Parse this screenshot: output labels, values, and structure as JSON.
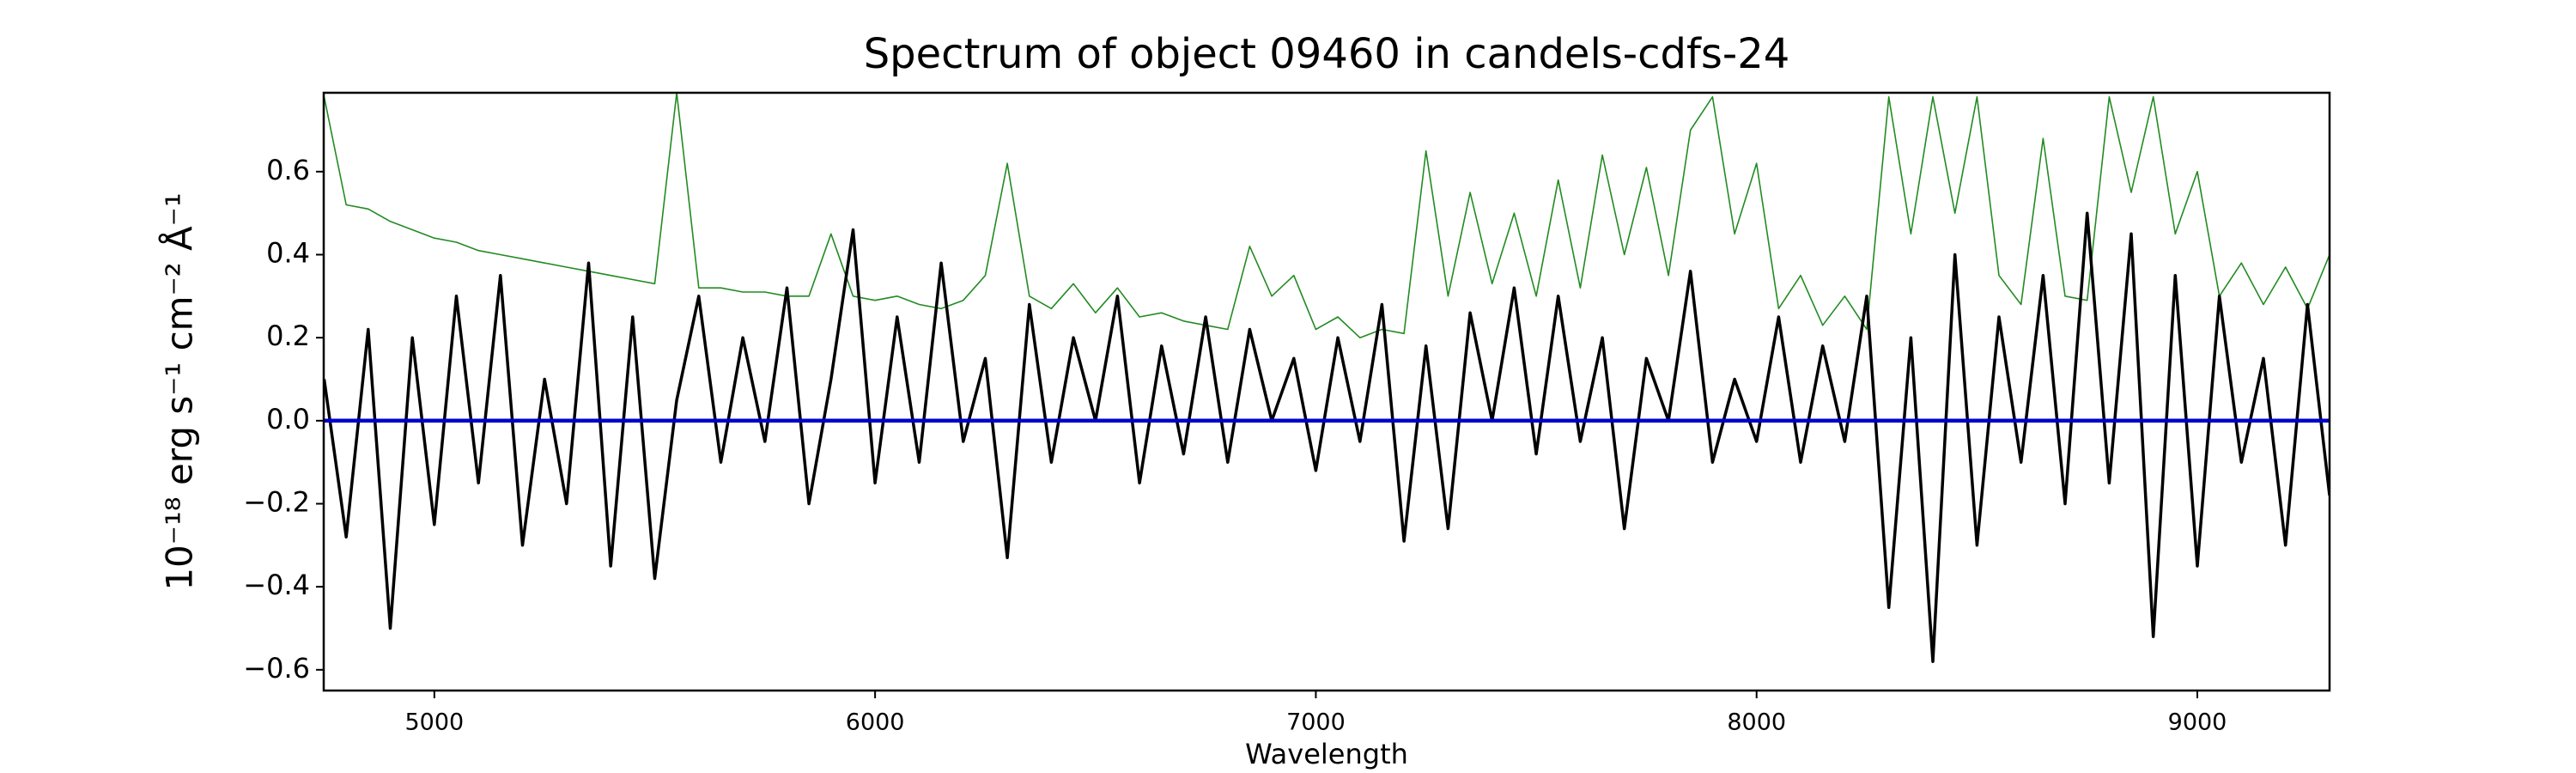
{
  "chart_data": {
    "type": "line",
    "title": "Spectrum of object 09460 in candels-cdfs-24",
    "x_label": "Wavelength",
    "y_label": "10⁻¹⁸ erg s⁻¹ cm⁻² Å⁻¹",
    "xlim": [
      4749,
      9300
    ],
    "ylim": [
      -0.65,
      0.79
    ],
    "xticks": [
      5000,
      6000,
      7000,
      8000,
      9000
    ],
    "yticks": [
      {
        "value": -0.6,
        "label": "−0.6"
      },
      {
        "value": -0.4,
        "label": "−0.4"
      },
      {
        "value": -0.2,
        "label": "−0.2"
      },
      {
        "value": 0,
        "label": "0.0"
      },
      0.2,
      0.4,
      0.6
    ],
    "x": [
      4750,
      4800,
      4850,
      4900,
      4950,
      5000,
      5050,
      5100,
      5150,
      5200,
      5250,
      5300,
      5350,
      5400,
      5450,
      5500,
      5550,
      5600,
      5650,
      5700,
      5750,
      5800,
      5850,
      5900,
      5950,
      6000,
      6050,
      6100,
      6150,
      6200,
      6250,
      6300,
      6350,
      6400,
      6450,
      6500,
      6550,
      6600,
      6650,
      6700,
      6750,
      6800,
      6850,
      6900,
      6950,
      7000,
      7050,
      7100,
      7150,
      7200,
      7250,
      7300,
      7350,
      7400,
      7450,
      7500,
      7550,
      7600,
      7650,
      7700,
      7750,
      7800,
      7850,
      7900,
      7950,
      8000,
      8050,
      8100,
      8150,
      8200,
      8250,
      8300,
      8350,
      8400,
      8450,
      8500,
      8550,
      8600,
      8650,
      8700,
      8750,
      8800,
      8850,
      8900,
      8950,
      9000,
      9050,
      9100,
      9150,
      9200,
      9250,
      9300
    ],
    "series": [
      {
        "color": "#228b22",
        "width": 1.6,
        "values": [
          0.78,
          0.52,
          0.51,
          0.48,
          0.46,
          0.44,
          0.43,
          0.41,
          0.4,
          0.39,
          0.38,
          0.37,
          0.36,
          0.35,
          0.34,
          0.33,
          0.79,
          0.32,
          0.32,
          0.31,
          0.31,
          0.3,
          0.3,
          0.45,
          0.3,
          0.29,
          0.3,
          0.28,
          0.27,
          0.29,
          0.35,
          0.62,
          0.3,
          0.27,
          0.33,
          0.26,
          0.32,
          0.25,
          0.26,
          0.24,
          0.23,
          0.22,
          0.42,
          0.3,
          0.35,
          0.22,
          0.25,
          0.2,
          0.22,
          0.21,
          0.65,
          0.3,
          0.55,
          0.33,
          0.5,
          0.3,
          0.58,
          0.32,
          0.64,
          0.4,
          0.61,
          0.35,
          0.7,
          0.78,
          0.45,
          0.62,
          0.27,
          0.35,
          0.23,
          0.3,
          0.22,
          0.78,
          0.45,
          0.78,
          0.5,
          0.78,
          0.35,
          0.28,
          0.68,
          0.3,
          0.29,
          0.78,
          0.55,
          0.78,
          0.45,
          0.6,
          0.3,
          0.38,
          0.28,
          0.37,
          0.27,
          0.4
        ]
      },
      {
        "color": "#000000",
        "width": 3.5,
        "values": [
          0.1,
          -0.28,
          0.22,
          -0.5,
          0.2,
          -0.25,
          0.3,
          -0.15,
          0.35,
          -0.3,
          0.1,
          -0.2,
          0.38,
          -0.35,
          0.25,
          -0.38,
          0.05,
          0.3,
          -0.1,
          0.2,
          -0.05,
          0.32,
          -0.2,
          0.1,
          0.46,
          -0.15,
          0.25,
          -0.1,
          0.38,
          -0.05,
          0.15,
          -0.33,
          0.28,
          -0.1,
          0.2,
          0.0,
          0.3,
          -0.15,
          0.18,
          -0.08,
          0.25,
          -0.1,
          0.22,
          0.0,
          0.15,
          -0.12,
          0.2,
          -0.05,
          0.28,
          -0.29,
          0.18,
          -0.26,
          0.26,
          0.0,
          0.32,
          -0.08,
          0.3,
          -0.05,
          0.2,
          -0.26,
          0.15,
          0.0,
          0.36,
          -0.1,
          0.1,
          -0.05,
          0.25,
          -0.1,
          0.18,
          -0.05,
          0.3,
          -0.45,
          0.2,
          -0.58,
          0.4,
          -0.3,
          0.25,
          -0.1,
          0.35,
          -0.2,
          0.5,
          -0.15,
          0.45,
          -0.52,
          0.35,
          -0.35,
          0.3,
          -0.1,
          0.15,
          -0.3,
          0.28,
          -0.18
        ]
      },
      {
        "color": "#0000cd",
        "width": 4.5,
        "x": [
          4750,
          9300
        ],
        "values": [
          0,
          0
        ]
      }
    ]
  }
}
